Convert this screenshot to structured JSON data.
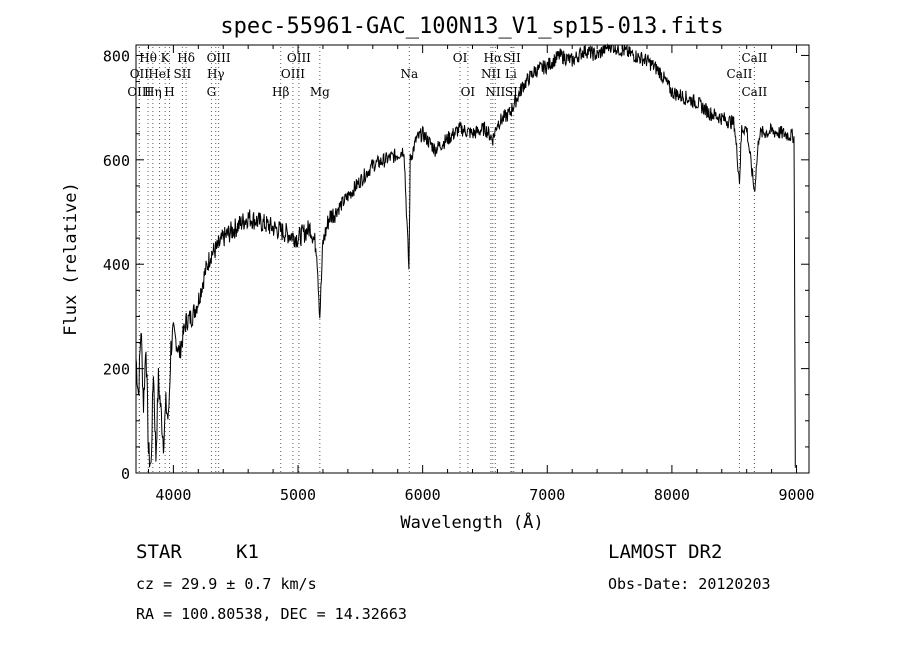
{
  "chart_data": {
    "type": "line",
    "title": "spec-55961-GAC_100N13_V1_sp15-013.fits",
    "xlabel": "Wavelength (Å)",
    "ylabel": "Flux (relative)",
    "xlim": [
      3700,
      9100
    ],
    "ylim": [
      0,
      820
    ],
    "x_ticks": [
      4000,
      5000,
      6000,
      7000,
      8000,
      9000
    ],
    "y_ticks": [
      0,
      200,
      400,
      600,
      800
    ],
    "grid": false,
    "line_color": "#000000",
    "marker_color": "#d62728",
    "spectrum": {
      "x": [
        3700,
        3720,
        3740,
        3760,
        3780,
        3800,
        3820,
        3840,
        3860,
        3880,
        3900,
        3920,
        3940,
        3960,
        3980,
        4000,
        4050,
        4100,
        4150,
        4200,
        4250,
        4300,
        4350,
        4400,
        4450,
        4500,
        4550,
        4600,
        4700,
        4800,
        4900,
        5000,
        5100,
        5150,
        5175,
        5200,
        5250,
        5300,
        5400,
        5500,
        5600,
        5700,
        5800,
        5850,
        5890,
        5900,
        5950,
        6000,
        6100,
        6200,
        6300,
        6400,
        6500,
        6563,
        6600,
        6700,
        6800,
        6900,
        7000,
        7100,
        7200,
        7300,
        7400,
        7500,
        7600,
        7700,
        7800,
        7900,
        8000,
        8100,
        8200,
        8300,
        8400,
        8500,
        8542,
        8560,
        8600,
        8662,
        8700,
        8800,
        8900,
        8980,
        8990
      ],
      "y": [
        220,
        150,
        280,
        130,
        250,
        40,
        10,
        200,
        30,
        180,
        120,
        60,
        130,
        100,
        240,
        270,
        230,
        290,
        300,
        330,
        380,
        420,
        430,
        450,
        460,
        470,
        480,
        490,
        480,
        470,
        460,
        450,
        470,
        430,
        300,
        440,
        490,
        500,
        530,
        560,
        590,
        600,
        610,
        620,
        390,
        600,
        640,
        650,
        620,
        640,
        660,
        650,
        660,
        640,
        670,
        690,
        740,
        770,
        780,
        800,
        790,
        810,
        800,
        820,
        810,
        800,
        790,
        770,
        730,
        720,
        710,
        690,
        680,
        670,
        560,
        660,
        660,
        540,
        650,
        655,
        650,
        645,
        10
      ]
    },
    "line_markers": [
      {
        "label": "Hθ",
        "x": 3797,
        "row": 1
      },
      {
        "label": "OII",
        "x": 3727,
        "row": 2
      },
      {
        "label": "OIII",
        "x": 3727,
        "row": 3
      },
      {
        "label": "K",
        "x": 3934,
        "row": 1
      },
      {
        "label": "HeI",
        "x": 3889,
        "row": 2
      },
      {
        "label": "Hη",
        "x": 3835,
        "row": 3
      },
      {
        "label": "H",
        "x": 3969,
        "row": 3
      },
      {
        "label": "Hδ",
        "x": 4102,
        "row": 1
      },
      {
        "label": "SII",
        "x": 4072,
        "row": 2
      },
      {
        "label": "OIII",
        "x": 4363,
        "row": 1
      },
      {
        "label": "Hγ",
        "x": 4340,
        "row": 2
      },
      {
        "label": "G",
        "x": 4305,
        "row": 3
      },
      {
        "label": "OIII",
        "x": 5007,
        "row": 1
      },
      {
        "label": "OIII",
        "x": 4959,
        "row": 2
      },
      {
        "label": "Hβ",
        "x": 4861,
        "row": 3
      },
      {
        "label": "Mg",
        "x": 5175,
        "row": 3
      },
      {
        "label": "Na",
        "x": 5893,
        "row": 2
      },
      {
        "label": "OI",
        "x": 6300,
        "row": 1
      },
      {
        "label": "OI",
        "x": 6363,
        "row": 3
      },
      {
        "label": "Hα",
        "x": 6563,
        "row": 1
      },
      {
        "label": "SII",
        "x": 6716,
        "row": 1
      },
      {
        "label": "NII",
        "x": 6548,
        "row": 2
      },
      {
        "label": "Li",
        "x": 6708,
        "row": 2
      },
      {
        "label": "NII",
        "x": 6583,
        "row": 3
      },
      {
        "label": "SII",
        "x": 6731,
        "row": 3
      },
      {
        "label": "CaII",
        "x": 8662,
        "row": 1
      },
      {
        "label": "CaII",
        "x": 8542,
        "row": 2
      },
      {
        "label": "CaII",
        "x": 8662,
        "row": 3
      }
    ]
  },
  "info": {
    "object_type": "STAR",
    "subclass": "K1",
    "survey": "LAMOST DR2",
    "cz": "cz = 29.9 ± 0.7 km/s",
    "obs_date": "Obs-Date: 20120203",
    "coords": "RA = 100.80538, DEC =  14.32663"
  }
}
